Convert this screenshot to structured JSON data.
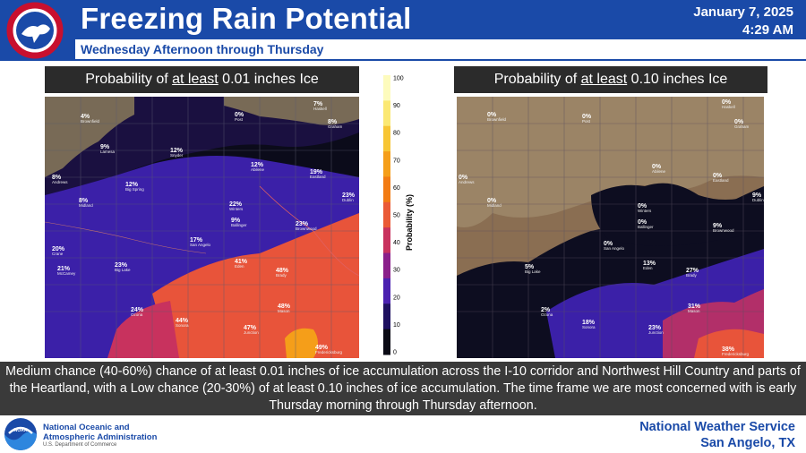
{
  "header": {
    "title": "Freezing Rain Potential",
    "subtitle": "Wednesday Afternoon through Thursday",
    "date": "January 7, 2025",
    "time": "4:29 AM",
    "nws_logo_text": "NATIONAL WEATHER SERVICE"
  },
  "left_panel": {
    "title_prefix": "Probability of ",
    "title_emph": "at least",
    "title_suffix": " 0.01 inches Ice",
    "values": [
      {
        "label": "4%",
        "city": "Brownfield"
      },
      {
        "label": "0%",
        "city": "Post"
      },
      {
        "label": "7%",
        "city": "Haskell"
      },
      {
        "label": "8%",
        "city": "Graham"
      },
      {
        "label": "9%",
        "city": "Lamesa"
      },
      {
        "label": "12%",
        "city": "Snyder"
      },
      {
        "label": "8%",
        "city": "Andrews"
      },
      {
        "label": "12%",
        "city": "Abilene"
      },
      {
        "label": "19%",
        "city": "Eastland"
      },
      {
        "label": "12%",
        "city": "Big Spring"
      },
      {
        "label": "8%",
        "city": "Midland"
      },
      {
        "label": "23%",
        "city": "Dublin"
      },
      {
        "label": "22%",
        "city": "Winters"
      },
      {
        "label": "9%",
        "city": "Ballinger"
      },
      {
        "label": "23%",
        "city": "Brownwood"
      },
      {
        "label": "17%",
        "city": "San Angelo"
      },
      {
        "label": "20%",
        "city": "Crane"
      },
      {
        "label": "21%",
        "city": "McCamey"
      },
      {
        "label": "23%",
        "city": "Big Lake"
      },
      {
        "label": "41%",
        "city": "Eden"
      },
      {
        "label": "48%",
        "city": "Brady"
      },
      {
        "label": "24%",
        "city": "Ozona"
      },
      {
        "label": "48%",
        "city": "Mason"
      },
      {
        "label": "44%",
        "city": "Sonora"
      },
      {
        "label": "47%",
        "city": "Junction"
      },
      {
        "label": "49%",
        "city": "Fredericksburg"
      }
    ]
  },
  "right_panel": {
    "title_prefix": "Probability of ",
    "title_emph": "at least",
    "title_suffix": " 0.10 inches Ice",
    "values": [
      {
        "label": "0%",
        "city": "Haskell"
      },
      {
        "label": "0%",
        "city": "Brownfield"
      },
      {
        "label": "0%",
        "city": "Post"
      },
      {
        "label": "0%",
        "city": "Graham"
      },
      {
        "label": "0%",
        "city": "Abilene"
      },
      {
        "label": "0%",
        "city": "Eastland"
      },
      {
        "label": "0%",
        "city": "Andrews"
      },
      {
        "label": "0%",
        "city": "Midland"
      },
      {
        "label": "0%",
        "city": "Winters"
      },
      {
        "label": "9%",
        "city": "Dublin"
      },
      {
        "label": "0%",
        "city": "Ballinger"
      },
      {
        "label": "9%",
        "city": "Brownwood"
      },
      {
        "label": "0%",
        "city": "San Angelo"
      },
      {
        "label": "5%",
        "city": "Big Lake"
      },
      {
        "label": "13%",
        "city": "Eden"
      },
      {
        "label": "27%",
        "city": "Brady"
      },
      {
        "label": "2%",
        "city": "Ozona"
      },
      {
        "label": "31%",
        "city": "Mason"
      },
      {
        "label": "18%",
        "city": "Sonora"
      },
      {
        "label": "23%",
        "city": "Junction"
      },
      {
        "label": "38%",
        "city": "Fredericksburg"
      }
    ]
  },
  "legend": {
    "title": "Probability (%)",
    "ticks": [
      "100",
      "90",
      "80",
      "70",
      "60",
      "50",
      "40",
      "30",
      "20",
      "10",
      "0"
    ],
    "colors": [
      "#fdfbbd",
      "#fbe873",
      "#f7c534",
      "#f59e19",
      "#f27b13",
      "#ea5a36",
      "#c8325e",
      "#8a1f8a",
      "#4b21b0",
      "#1e1060",
      "#0a0a14"
    ]
  },
  "caption": "Medium chance (40-60%) chance of at least 0.01 inches of ice accumulation across the I-10 corridor and Northwest Hill Country and parts of the Heartland, with a Low chance (20-30%) of at least 0.10 inches of ice accumulation. The time frame we are most concerned with is early Thursday morning through Thursday afternoon.",
  "footer": {
    "noaa_line1": "National Oceanic and",
    "noaa_line2": "Atmospheric Administration",
    "noaa_sub": "U.S. Department of Commerce",
    "noaa_logo_text": "NOAA",
    "office_line1": "National Weather Service",
    "office_line2": "San Angelo, TX"
  }
}
